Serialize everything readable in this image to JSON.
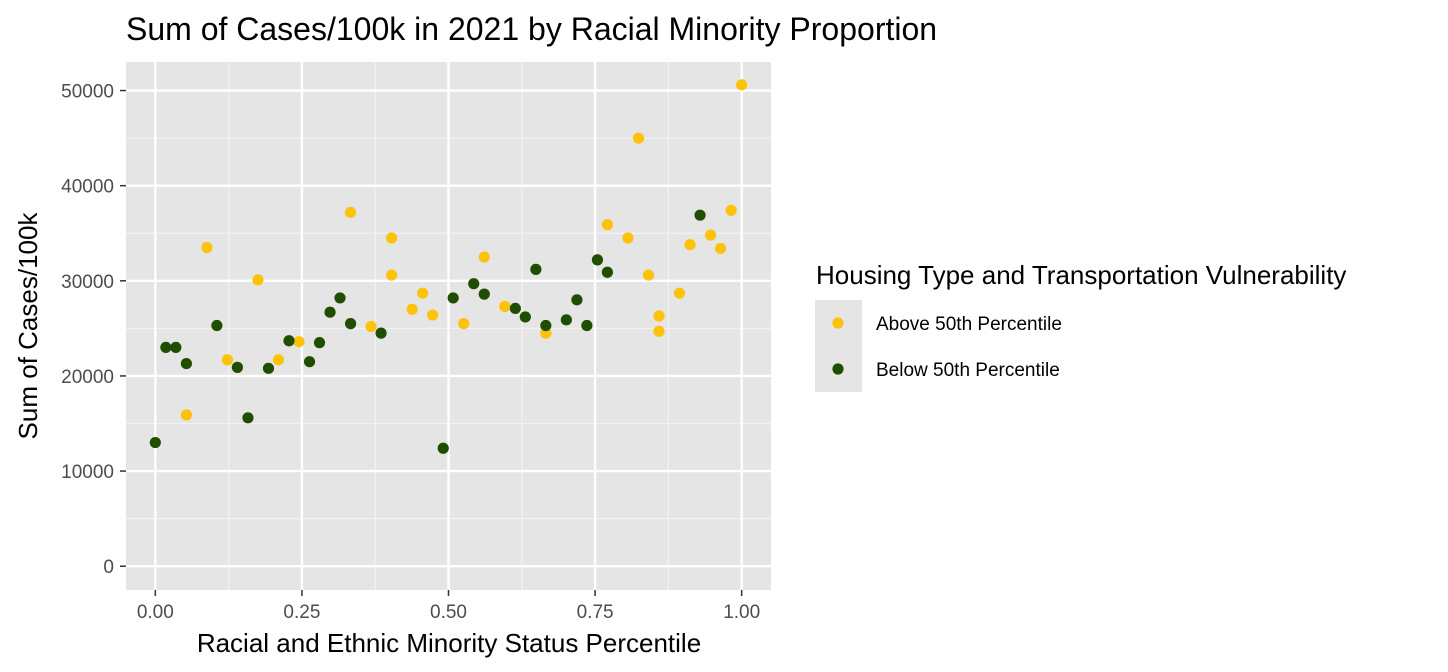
{
  "chart_data": {
    "type": "scatter",
    "title": "Sum of Cases/100k in 2021 by Racial Minority Proportion",
    "xlabel": "Racial and Ethnic Minority Status Percentile",
    "ylabel": "Sum of Cases/100k",
    "xlim": [
      -0.05,
      1.05
    ],
    "ylim": [
      -2500,
      53000
    ],
    "x_ticks": [
      0,
      0.25,
      0.5,
      0.75,
      1.0
    ],
    "x_tick_labels": [
      "0.00",
      "0.25",
      "0.50",
      "0.75",
      "1.00"
    ],
    "y_ticks": [
      0,
      10000,
      20000,
      30000,
      40000,
      50000
    ],
    "y_tick_labels": [
      "0",
      "10000",
      "20000",
      "30000",
      "40000",
      "50000"
    ],
    "grid": true,
    "legend": {
      "title": "Housing Type and Transportation Vulnerability",
      "position": "right"
    },
    "series": [
      {
        "name": "Above 50th Percentile",
        "color": "#FFC20A",
        "points": [
          {
            "x": 0.053,
            "y": 15900
          },
          {
            "x": 0.088,
            "y": 33500
          },
          {
            "x": 0.123,
            "y": 21700
          },
          {
            "x": 0.175,
            "y": 30100
          },
          {
            "x": 0.21,
            "y": 21700
          },
          {
            "x": 0.245,
            "y": 23600
          },
          {
            "x": 0.333,
            "y": 37200
          },
          {
            "x": 0.368,
            "y": 25200
          },
          {
            "x": 0.403,
            "y": 34500
          },
          {
            "x": 0.403,
            "y": 30600
          },
          {
            "x": 0.438,
            "y": 27000
          },
          {
            "x": 0.456,
            "y": 28700
          },
          {
            "x": 0.473,
            "y": 26400
          },
          {
            "x": 0.526,
            "y": 25500
          },
          {
            "x": 0.561,
            "y": 32500
          },
          {
            "x": 0.596,
            "y": 27300
          },
          {
            "x": 0.666,
            "y": 24500
          },
          {
            "x": 0.771,
            "y": 35900
          },
          {
            "x": 0.806,
            "y": 34500
          },
          {
            "x": 0.824,
            "y": 45000
          },
          {
            "x": 0.841,
            "y": 30600
          },
          {
            "x": 0.859,
            "y": 26300
          },
          {
            "x": 0.859,
            "y": 24700
          },
          {
            "x": 0.894,
            "y": 28700
          },
          {
            "x": 0.912,
            "y": 33800
          },
          {
            "x": 0.947,
            "y": 34800
          },
          {
            "x": 0.964,
            "y": 33400
          },
          {
            "x": 0.982,
            "y": 37400
          },
          {
            "x": 1.0,
            "y": 50600
          }
        ]
      },
      {
        "name": "Below 50th Percentile",
        "color": "#1F4E00",
        "points": [
          {
            "x": 0.0,
            "y": 13000
          },
          {
            "x": 0.018,
            "y": 23000
          },
          {
            "x": 0.035,
            "y": 23000
          },
          {
            "x": 0.053,
            "y": 21300
          },
          {
            "x": 0.105,
            "y": 25300
          },
          {
            "x": 0.14,
            "y": 20900
          },
          {
            "x": 0.158,
            "y": 15600
          },
          {
            "x": 0.193,
            "y": 20800
          },
          {
            "x": 0.228,
            "y": 23700
          },
          {
            "x": 0.263,
            "y": 21500
          },
          {
            "x": 0.28,
            "y": 23500
          },
          {
            "x": 0.298,
            "y": 26700
          },
          {
            "x": 0.315,
            "y": 28200
          },
          {
            "x": 0.333,
            "y": 25500
          },
          {
            "x": 0.385,
            "y": 24500
          },
          {
            "x": 0.491,
            "y": 12400
          },
          {
            "x": 0.508,
            "y": 28200
          },
          {
            "x": 0.543,
            "y": 29700
          },
          {
            "x": 0.561,
            "y": 28600
          },
          {
            "x": 0.614,
            "y": 27100
          },
          {
            "x": 0.631,
            "y": 26200
          },
          {
            "x": 0.649,
            "y": 31200
          },
          {
            "x": 0.666,
            "y": 25300
          },
          {
            "x": 0.701,
            "y": 25900
          },
          {
            "x": 0.719,
            "y": 28000
          },
          {
            "x": 0.736,
            "y": 25300
          },
          {
            "x": 0.754,
            "y": 32200
          },
          {
            "x": 0.771,
            "y": 30900
          },
          {
            "x": 0.929,
            "y": 36900
          }
        ]
      }
    ]
  }
}
